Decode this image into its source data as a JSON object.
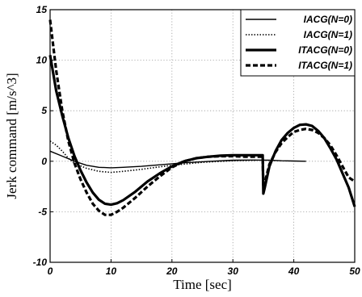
{
  "chart_data": {
    "type": "line",
    "title": "",
    "xlabel": "Time [sec]",
    "ylabel": "Jerk command [m/s^3]",
    "xlim": [
      0,
      50
    ],
    "ylim": [
      -10,
      15
    ],
    "xticks": [
      0,
      10,
      20,
      30,
      40,
      50
    ],
    "yticks": [
      -10,
      -5,
      0,
      5,
      10,
      15
    ],
    "grid": true,
    "legend_position": "top-right",
    "series": [
      {
        "name": "IACG(N=0)",
        "style": "thin-solid",
        "x": [
          0,
          2,
          4,
          6,
          8,
          10,
          12,
          15,
          18,
          20,
          22,
          25,
          28,
          30,
          33,
          36,
          38,
          40,
          42
        ],
        "y": [
          1.0,
          0.5,
          0.0,
          -0.4,
          -0.6,
          -0.65,
          -0.6,
          -0.5,
          -0.35,
          -0.25,
          -0.15,
          -0.05,
          0.05,
          0.1,
          0.12,
          0.1,
          0.05,
          0.02,
          0.0
        ]
      },
      {
        "name": "IACG(N=1)",
        "style": "thin-dotted",
        "x": [
          0,
          1,
          2,
          3,
          4,
          6,
          8,
          10,
          12,
          15,
          18,
          20,
          25,
          30,
          34
        ],
        "y": [
          2.0,
          1.6,
          1.0,
          0.3,
          -0.2,
          -0.7,
          -1.0,
          -1.1,
          -1.0,
          -0.8,
          -0.55,
          -0.4,
          -0.1,
          0.05,
          0.1
        ]
      },
      {
        "name": "ITACG(N=0)",
        "style": "thick-solid",
        "x": [
          0,
          1,
          2,
          3,
          4,
          5,
          6,
          7,
          8,
          9,
          10,
          11,
          12,
          14,
          16,
          18,
          20,
          22,
          24,
          26,
          28,
          30,
          32,
          34,
          34.9,
          35.0,
          35.2,
          36,
          37,
          38,
          39,
          40,
          41,
          42,
          43,
          44,
          45,
          46,
          47,
          48,
          49,
          50
        ],
        "y": [
          10.5,
          7.0,
          4.5,
          2.3,
          0.5,
          -0.9,
          -2.1,
          -3.1,
          -3.8,
          -4.2,
          -4.3,
          -4.15,
          -3.85,
          -3.0,
          -2.0,
          -1.2,
          -0.5,
          0.0,
          0.3,
          0.45,
          0.55,
          0.6,
          0.6,
          0.6,
          0.6,
          -3.2,
          -2.7,
          -0.5,
          1.0,
          2.1,
          2.8,
          3.3,
          3.6,
          3.65,
          3.5,
          3.0,
          2.3,
          1.3,
          0.2,
          -1.2,
          -2.6,
          -4.5
        ]
      },
      {
        "name": "ITACG(N=1)",
        "style": "thick-dashed",
        "x": [
          0,
          1,
          2,
          3,
          4,
          5,
          6,
          7,
          8,
          9,
          10,
          11,
          12,
          14,
          16,
          18,
          20,
          22,
          24,
          26,
          28,
          30,
          32,
          34,
          34.9,
          35.0,
          35.2,
          36,
          37,
          38,
          39,
          40,
          41,
          42,
          43,
          44,
          45,
          46,
          47,
          48,
          49,
          50
        ],
        "y": [
          14.0,
          9.0,
          5.0,
          2.0,
          -0.2,
          -1.8,
          -3.1,
          -4.2,
          -4.9,
          -5.3,
          -5.3,
          -5.0,
          -4.6,
          -3.6,
          -2.5,
          -1.5,
          -0.6,
          0.0,
          0.3,
          0.45,
          0.5,
          0.5,
          0.45,
          0.45,
          0.45,
          -2.6,
          -2.2,
          -0.3,
          0.9,
          1.8,
          2.4,
          2.9,
          3.1,
          3.2,
          3.1,
          2.8,
          2.3,
          1.6,
          0.6,
          -0.5,
          -1.6,
          -2.0
        ]
      }
    ]
  }
}
